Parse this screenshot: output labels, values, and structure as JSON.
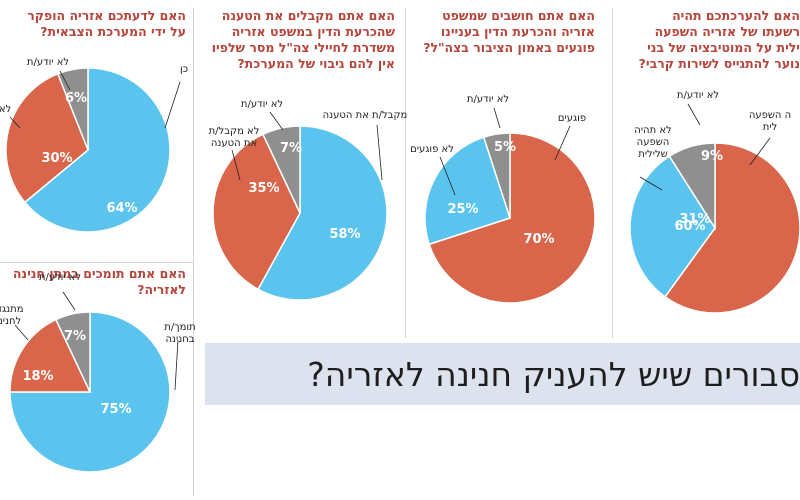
{
  "colors": {
    "blue": "#5bc4ee",
    "orange": "#d9664a",
    "gray": "#8f8f8f",
    "question": "#b5463b",
    "banner_bg": "#dce3ee"
  },
  "banner": {
    "text": "סבורים שיש להעניק חנינה לאזריה?"
  },
  "chart_data": [
    {
      "type": "pie",
      "title": "האם להערכתכם תהיה השפעה שלילית על המוטיבציה של בני הנוער להתגייס לשירות קרבי?",
      "title_visible": [
        "האם להערכתכם תהיה",
        "רשעתו של אזריה השפעה",
        "ילית על המוטיבציה של בני",
        "נוער להתגייס לשירות קרבי?"
      ],
      "slices": [
        {
          "label": "תהיה השפעה שלילית",
          "label_visible": [
            "ה השפעה",
            "לית"
          ],
          "value": 60,
          "display": "60%"
        },
        {
          "label": "לא תהיה השפעה שלילית",
          "label_visible": [
            "לא תהיה",
            "השפעה",
            "שלילית"
          ],
          "value": 31,
          "display": "31%"
        },
        {
          "label": "לא יודע/ת",
          "label_visible": [
            "לא יודע/ת"
          ],
          "value": 9,
          "display": "9%"
        }
      ]
    },
    {
      "type": "pie",
      "title": "האם אתם חושבים שמשפט אזריה והכרעת הדין בעניינו פוגעים באמון הציבור בצה\"ל?",
      "title_visible": [
        "האם אתם חושבים שמשפט",
        "אזריה והכרעת הדין בעניינו",
        "פוגעים באמון הציבור בצה\"ל?"
      ],
      "slices": [
        {
          "label": "פוגעים",
          "label_visible": [
            "פוגעים"
          ],
          "value": 70,
          "display": "70%"
        },
        {
          "label": "לא פוגעים",
          "label_visible": [
            "לא פוגעים"
          ],
          "value": 25,
          "display": "25%"
        },
        {
          "label": "לא יודע/ת",
          "label_visible": [
            "לא יודע/ת"
          ],
          "value": 5,
          "display": "5%"
        }
      ]
    },
    {
      "type": "pie",
      "title": "האם אתם מקבלים את הטענה שהכרעת הדין במשפט אזריה משדרת לחיילי צה\"ל מסר שלפיו אין להם גיבוי של המערכת?",
      "title_visible": [
        "האם אתם מקבלים את הטענה",
        "שהכרעת הדין במשפט אזריה",
        "משדרת לחיילי צה\"ל מסר שלפיו",
        "אין להם גיבוי של המערכת?"
      ],
      "slices": [
        {
          "label": "מקבל/ת את הטענה",
          "label_visible": [
            "מקבל/ת את הטענה"
          ],
          "value": 58,
          "display": "58%"
        },
        {
          "label": "לא מקבל/ת את הטענה",
          "label_visible": [
            "לא מקבל/ת",
            "את הטענה"
          ],
          "value": 35,
          "display": "35%"
        },
        {
          "label": "לא יודע/ת",
          "label_visible": [
            "לא יודע/ת"
          ],
          "value": 7,
          "display": "7%"
        }
      ]
    },
    {
      "type": "pie",
      "title": "האם לדעתכם אזריה הופקר על ידי המערכת הצבאית?",
      "title_visible": [
        "האם לדעתכם אזריה הופקר",
        "על ידי המערכת הצבאית?"
      ],
      "slices": [
        {
          "label": "כן",
          "label_visible": [
            "כן"
          ],
          "value": 64,
          "display": "64%"
        },
        {
          "label": "לא",
          "label_visible": [
            "לא"
          ],
          "value": 30,
          "display": "30%"
        },
        {
          "label": "לא יודע/ת",
          "label_visible": [
            "לא יודע/ת"
          ],
          "value": 6,
          "display": "6%"
        }
      ]
    },
    {
      "type": "pie",
      "title": "האם אתם תומכים במתן חנינה לאזריה?",
      "title_visible": [
        "האם אתם תומכים במתן חנינה",
        "לאזריה?"
      ],
      "slices": [
        {
          "label": "תומך/ת בחנינה",
          "label_visible": [
            "תומך/ת",
            "בחנינה"
          ],
          "value": 75,
          "display": "75%"
        },
        {
          "label": "מתנגד/ת לחנינה",
          "label_visible": [
            "מתנגד",
            "לחנינ"
          ],
          "value": 18,
          "display": "18%"
        },
        {
          "label": "לא יודע/ת",
          "label_visible": [
            "לא יודע/ת"
          ],
          "value": 7,
          "display": "7%"
        }
      ]
    }
  ]
}
